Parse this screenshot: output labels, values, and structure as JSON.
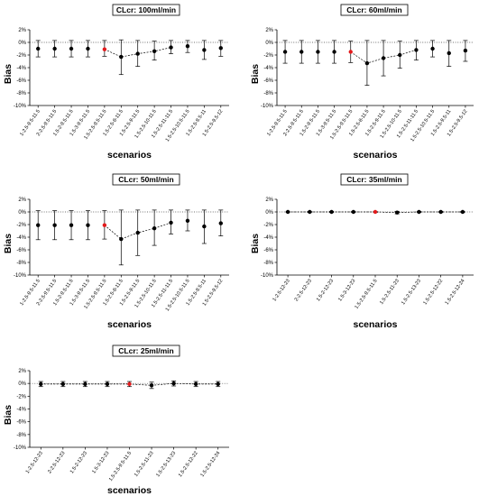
{
  "colors": {
    "point": "#000000",
    "highlight": "#e31a1c",
    "line": "#000000",
    "titlebox_border": "#000000"
  },
  "chart_data": [
    {
      "type": "scatter",
      "title": "CLcr: 100ml/min",
      "xlabel": "scenarios",
      "ylabel": "Bias",
      "ylim": [
        -10,
        2
      ],
      "yticks": [
        "2%",
        "0%",
        "-2%",
        "-4%",
        "-6%",
        "-8%",
        "-10%"
      ],
      "reference_line_y": 0,
      "grid": false,
      "categories": [
        "1-2.5-9.5-11.5",
        "2-2.5-9.5-11.5",
        "1.5-2-9.5-11.5",
        "1.5-3-9.5-11.5",
        "1.5-2.5-9.5-11.5",
        "1.5-2.5-8-11.5",
        "1.5-2.5-9-11.5",
        "1.5-2.5-10-11.5",
        "1.5-2.5-11-11.5",
        "1.5-2.5-10.5-11.5",
        "1.5-2.5-9.5-11",
        "1.5-2.5-9.5-12"
      ],
      "values": [
        -1.0,
        -1.0,
        -1.0,
        -1.0,
        -1.1,
        -2.3,
        -1.8,
        -1.4,
        -0.8,
        -0.6,
        -1.2,
        -0.9
      ],
      "error_low": [
        -2.3,
        -2.3,
        -2.3,
        -2.3,
        -2.2,
        -5.1,
        -3.8,
        -2.8,
        -1.8,
        -1.6,
        -2.7,
        -2.2
      ],
      "error_high": [
        0.3,
        0.3,
        0.3,
        0.3,
        0.3,
        0.4,
        0.3,
        0.2,
        0.3,
        0.3,
        0.3,
        0.3
      ],
      "highlight_index": 4,
      "connected_range": [
        4,
        8
      ]
    },
    {
      "type": "scatter",
      "title": "CLcr: 60ml/min",
      "xlabel": "scenarios",
      "ylabel": "Bias",
      "ylim": [
        -10,
        2
      ],
      "yticks": [
        "2%",
        "0%",
        "-2%",
        "-4%",
        "-6%",
        "-8%",
        "-10%"
      ],
      "reference_line_y": 0,
      "grid": false,
      "categories": [
        "1-2.5-9.5-11.5",
        "2-2.5-9.5-11.5",
        "1.5-2-9.5-11.5",
        "1.5-3-9.5-11.5",
        "1.5-2.5-9.5-11.5",
        "1.5-2.5-8-11.5",
        "1.5-2.5-9-11.5",
        "1.5-2.5-10-11.5",
        "1.5-2.5-11-11.5",
        "1.5-2.5-10.5-11.5",
        "1.5-2.5-9.5-11",
        "1.5-2.5-9.5-12"
      ],
      "values": [
        -1.5,
        -1.5,
        -1.5,
        -1.5,
        -1.5,
        -3.3,
        -2.5,
        -2.0,
        -1.2,
        -1.0,
        -1.7,
        -1.3
      ],
      "error_low": [
        -3.3,
        -3.3,
        -3.3,
        -3.3,
        -3.2,
        -6.8,
        -5.3,
        -4.1,
        -2.8,
        -2.3,
        -3.8,
        -3.0
      ],
      "error_high": [
        0.3,
        0.3,
        0.3,
        0.3,
        0.2,
        0.3,
        0.3,
        0.2,
        0.3,
        0.3,
        0.3,
        0.3
      ],
      "highlight_index": 4,
      "connected_range": [
        4,
        8
      ]
    },
    {
      "type": "scatter",
      "title": "CLcr: 50ml/min",
      "xlabel": "scenarios",
      "ylabel": "Bias",
      "ylim": [
        -10,
        2
      ],
      "yticks": [
        "2%",
        "0%",
        "-2%",
        "-4%",
        "-6%",
        "-8%",
        "-10%"
      ],
      "reference_line_y": 0,
      "grid": false,
      "categories": [
        "1-2.5-9.5-11.5",
        "2-2.5-9.5-11.5",
        "1.5-2-9.5-11.5",
        "1.5-3-9.5-11.5",
        "1.5-2.5-9.5-11.5",
        "1.5-2.5-8-11.5",
        "1.5-2.5-9-11.5",
        "1.5-2.5-10-11.5",
        "1.5-2.5-11-11.5",
        "1.5-2.5-10.5-11.5",
        "1.5-2.5-9.5-11",
        "1.5-2.5-9.5-12"
      ],
      "values": [
        -2.1,
        -2.1,
        -2.1,
        -2.1,
        -2.1,
        -4.3,
        -3.3,
        -2.6,
        -1.7,
        -1.4,
        -2.3,
        -1.8
      ],
      "error_low": [
        -4.4,
        -4.4,
        -4.4,
        -4.4,
        -4.3,
        -8.4,
        -6.9,
        -5.3,
        -3.5,
        -3.0,
        -5.0,
        -3.8
      ],
      "error_high": [
        0.2,
        0.2,
        0.2,
        0.2,
        0.2,
        0.3,
        0.3,
        0.3,
        0.3,
        0.3,
        0.3,
        0.3
      ],
      "highlight_index": 4,
      "connected_range": [
        4,
        8
      ]
    },
    {
      "type": "scatter",
      "title": "CLcr: 35ml/min",
      "xlabel": "scenarios",
      "ylabel": "Bias",
      "ylim": [
        -10,
        2
      ],
      "yticks": [
        "2%",
        "0%",
        "-2%",
        "-4%",
        "-6%",
        "-8%",
        "-10%"
      ],
      "reference_line_y": 0,
      "grid": false,
      "categories": [
        "1-2.5-12-23",
        "2-2.5-12-23",
        "1.5-2-12-23",
        "1.5-3-12-23",
        "1.5-2.5-9.5-11.5",
        "1.5-2.5-11-23",
        "1.5-2.5-13-23",
        "1.5-2.5-12-22",
        "1.5-2.5-12-24"
      ],
      "values": [
        0.0,
        0.0,
        0.0,
        0.0,
        0.0,
        -0.1,
        0.0,
        0.0,
        0.0
      ],
      "error_low": [
        -0.1,
        -0.1,
        -0.1,
        -0.1,
        -0.1,
        -0.3,
        -0.1,
        -0.1,
        -0.1
      ],
      "error_high": [
        0.1,
        0.1,
        0.1,
        0.1,
        0.1,
        0.1,
        0.1,
        0.1,
        0.1
      ],
      "highlight_index": 4,
      "connected_range": [
        0,
        8
      ]
    },
    {
      "type": "scatter",
      "title": "CLcr: 25ml/min",
      "xlabel": "scenarios",
      "ylabel": "Bias",
      "ylim": [
        -10,
        2
      ],
      "yticks": [
        "2%",
        "0%",
        "-2%",
        "-4%",
        "-6%",
        "-8%",
        "-10%"
      ],
      "reference_line_y": 0,
      "grid": false,
      "categories": [
        "1-2.5-12-23",
        "2-2.5-12-23",
        "1.5-2-12-23",
        "1.5-3-12-23",
        "1.5-2.5-9.5-11.5",
        "1.5-2.5-11-23",
        "1.5-2.5-13-23",
        "1.5-2.5-12-22",
        "1.5-2.5-12-24"
      ],
      "values": [
        -0.1,
        -0.1,
        -0.1,
        -0.1,
        -0.1,
        -0.3,
        0.0,
        -0.1,
        -0.1
      ],
      "error_low": [
        -0.5,
        -0.5,
        -0.5,
        -0.5,
        -0.5,
        -0.8,
        -0.4,
        -0.5,
        -0.5
      ],
      "error_high": [
        0.3,
        0.3,
        0.3,
        0.3,
        0.3,
        0.2,
        0.4,
        0.3,
        0.3
      ],
      "highlight_index": 4,
      "connected_range": [
        0,
        8
      ]
    }
  ]
}
